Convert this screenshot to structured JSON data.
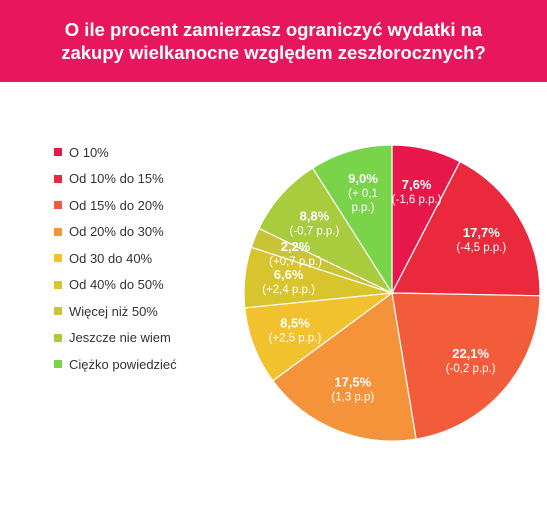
{
  "header": {
    "title_line1": "O ile procent zamierzasz ograniczyć wydatki na",
    "title_line2": "zakupy wielkanocne względem zeszłorocznych?"
  },
  "colors": {
    "header_bg": "#e8175d",
    "label_text": "#ffffff"
  },
  "chart_data": {
    "type": "pie",
    "title": "O ile procent zamierzasz ograniczyć wydatki na zakupy wielkanocne względem zeszłorocznych?",
    "legend_position": "left",
    "start_angle_deg": 0,
    "direction": "clockwise",
    "slices": [
      {
        "label": "O 10%",
        "value": 7.6,
        "value_label": "7,6%",
        "delta_label": [
          "(-1,6 p.p.)"
        ],
        "color": "#e8174a"
      },
      {
        "label": "Od 10% do 15%",
        "value": 17.7,
        "value_label": "17,7%",
        "delta_label": [
          "(-4,5 p.p.)"
        ],
        "color": "#ea2a3c"
      },
      {
        "label": "Od 15% do 20%",
        "value": 22.1,
        "value_label": "22,1%",
        "delta_label": [
          "(-0,2 p.p.)"
        ],
        "color": "#f25c3b"
      },
      {
        "label": "Od 20% do 30%",
        "value": 17.5,
        "value_label": "17,5%",
        "delta_label": [
          "(1,3 p.p)"
        ],
        "color": "#f5933a"
      },
      {
        "label": "Od 30 do 40%",
        "value": 8.5,
        "value_label": "8,5%",
        "delta_label": [
          "(+2,5 p.p.)"
        ],
        "color": "#f2c12e"
      },
      {
        "label": "Od 40% do 50%",
        "value": 6.6,
        "value_label": "6,6%",
        "delta_label": [
          "(+2,4 p.p.)"
        ],
        "color": "#d8c42c"
      },
      {
        "label": "Więcej niż 50%",
        "value": 2.2,
        "value_label": "2,2%",
        "delta_label": [
          "(+0,7 p.p.)"
        ],
        "color": "#c9c436"
      },
      {
        "label": "Jeszcze nie wiem",
        "value": 8.8,
        "value_label": "8,8%",
        "delta_label": [
          "(-0,7 p.p.)"
        ],
        "color": "#a8cc3e"
      },
      {
        "label": "Ciężko powiedzieć",
        "value": 9.0,
        "value_label": "9,0%",
        "delta_label": [
          "(+ 0,1",
          "p.p.)"
        ],
        "color": "#79d44a"
      }
    ]
  }
}
